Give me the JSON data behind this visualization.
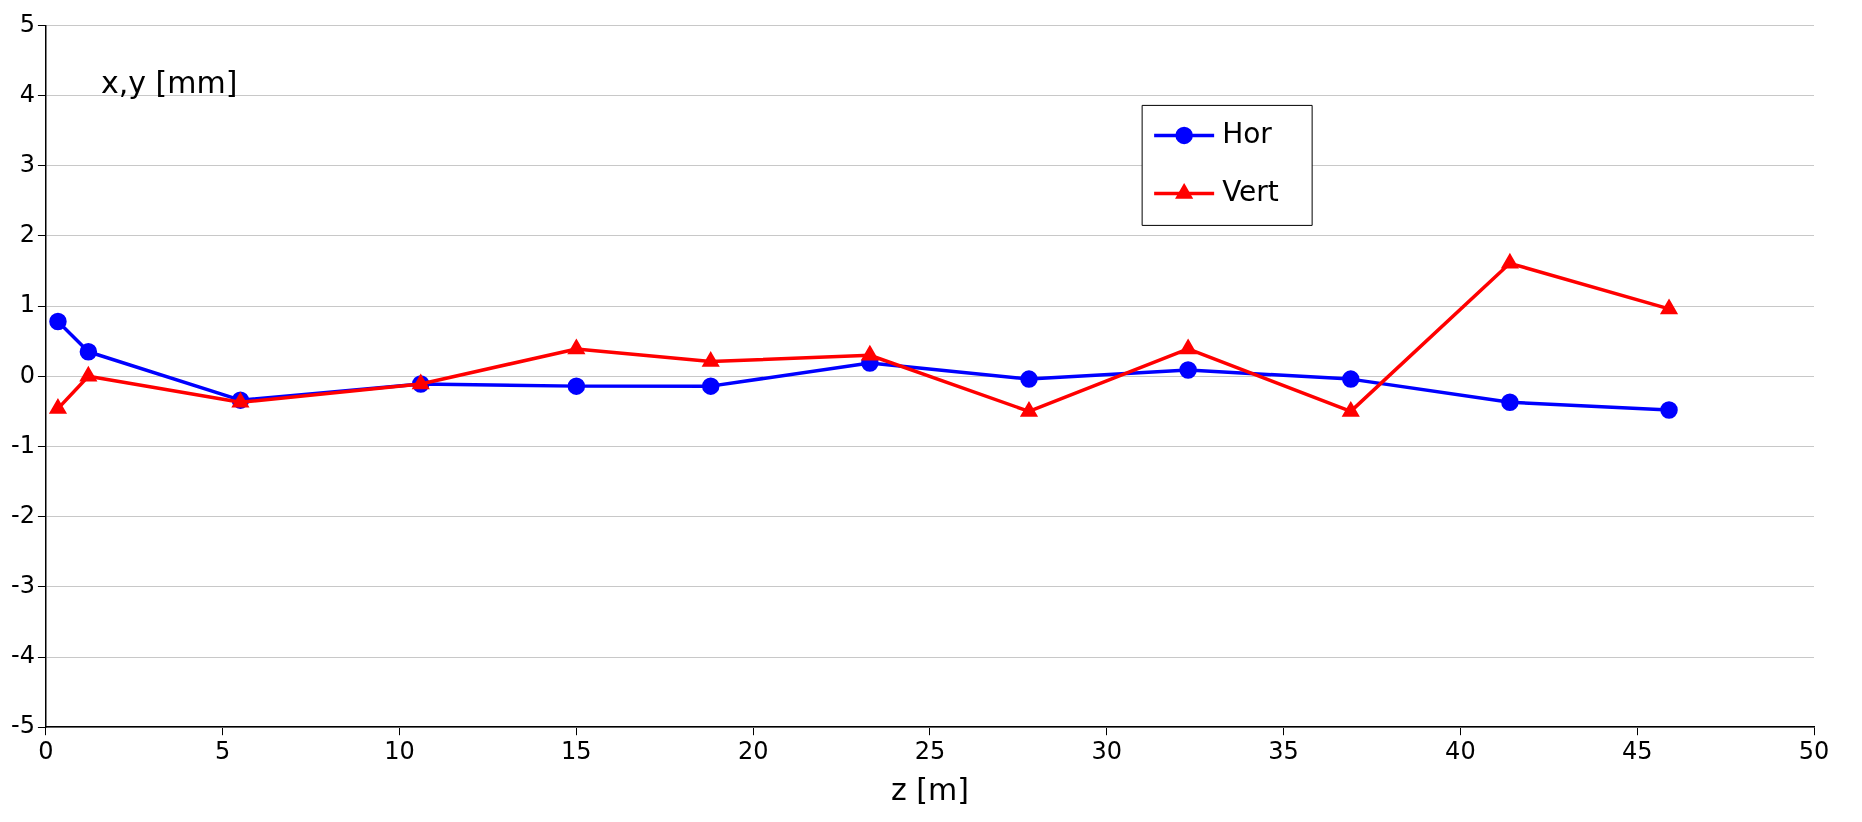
{
  "chart_data": {
    "type": "line",
    "ylabel": "x,y [mm]",
    "xlabel": "z [m]",
    "xlim": [
      0,
      50
    ],
    "xticks": [
      0,
      5,
      10,
      15,
      20,
      25,
      30,
      35,
      40,
      45,
      50
    ],
    "ylim": [
      -5,
      5
    ],
    "yticks": [
      -5,
      -4,
      -3,
      -2,
      -1,
      0,
      1,
      2,
      3,
      4,
      5
    ],
    "grid": "y",
    "legend": "top right",
    "series": [
      {
        "name": "Hor",
        "color": "#0000ff",
        "marker": "circle",
        "x": [
          0.34,
          1.2,
          5.5,
          10.6,
          15.0,
          18.8,
          23.3,
          27.8,
          32.3,
          36.9,
          41.4,
          45.9
        ],
        "values": [
          0.78,
          0.35,
          -0.34,
          -0.11,
          -0.14,
          -0.14,
          0.19,
          -0.04,
          0.09,
          -0.04,
          -0.37,
          -0.48
        ]
      },
      {
        "name": "Vert",
        "color": "#ff0000",
        "marker": "triangle",
        "x": [
          0.34,
          1.2,
          5.5,
          10.6,
          15.0,
          18.8,
          23.3,
          27.8,
          32.3,
          36.9,
          41.4,
          45.9
        ],
        "values": [
          -0.46,
          0,
          -0.37,
          -0.11,
          0.39,
          0.21,
          0.3,
          -0.5,
          0.39,
          -0.5,
          1.61,
          0.96
        ]
      }
    ]
  }
}
